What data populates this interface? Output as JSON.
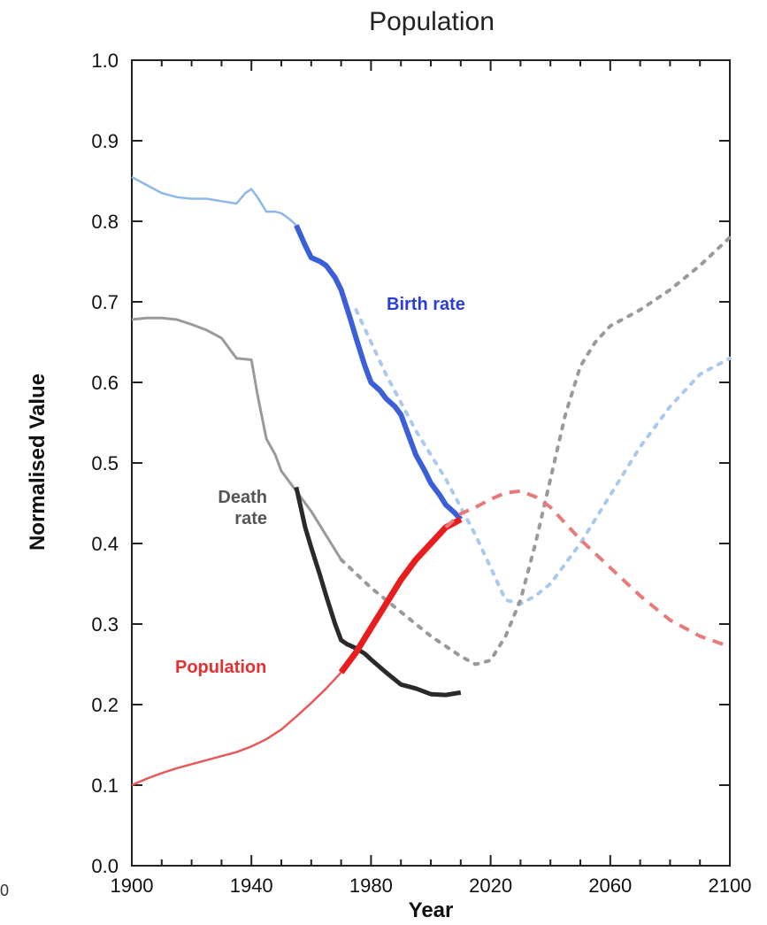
{
  "chart_data": {
    "type": "line",
    "title": "Population",
    "xlabel": "Year",
    "ylabel": "Normalised Value",
    "xlim": [
      1900,
      2100
    ],
    "ylim": [
      0.0,
      1.0
    ],
    "x_ticks": [
      "1900",
      "1940",
      "1980",
      "2020",
      "2060",
      "2100"
    ],
    "y_ticks": [
      "0.0",
      "0.1",
      "0.2",
      "0.3",
      "0.4",
      "0.5",
      "0.6",
      "0.7",
      "0.8",
      "0.9",
      "1.0"
    ],
    "stray_label": "0",
    "grid": false,
    "legend": "none",
    "annotations": [
      {
        "text": "Birth rate",
        "color": "#2b3fd6"
      },
      {
        "text": "Death",
        "color": "#555555"
      },
      {
        "text": "rate",
        "color": "#555555"
      },
      {
        "text": "Population",
        "color": "#e53030"
      }
    ],
    "series": [
      {
        "segments": [
          {
            "style": "solid",
            "color": "#8fb8e8",
            "width": 2.5,
            "points": [
              [
                1900,
                0.855
              ],
              [
                1905,
                0.845
              ],
              [
                1910,
                0.835
              ],
              [
                1915,
                0.83
              ],
              [
                1920,
                0.828
              ],
              [
                1925,
                0.828
              ],
              [
                1930,
                0.825
              ],
              [
                1935,
                0.822
              ],
              [
                1938,
                0.835
              ],
              [
                1940,
                0.84
              ],
              [
                1942,
                0.83
              ],
              [
                1945,
                0.812
              ],
              [
                1948,
                0.812
              ],
              [
                1950,
                0.81
              ],
              [
                1953,
                0.802
              ],
              [
                1955,
                0.795
              ]
            ]
          },
          {
            "style": "solid",
            "color": "#3a5fd9",
            "width": 6,
            "points": [
              [
                1955,
                0.795
              ],
              [
                1958,
                0.77
              ],
              [
                1960,
                0.755
              ],
              [
                1963,
                0.75
              ],
              [
                1965,
                0.745
              ],
              [
                1968,
                0.73
              ],
              [
                1970,
                0.715
              ],
              [
                1973,
                0.68
              ],
              [
                1975,
                0.655
              ],
              [
                1978,
                0.62
              ],
              [
                1980,
                0.6
              ],
              [
                1983,
                0.59
              ],
              [
                1985,
                0.58
              ],
              [
                1988,
                0.57
              ],
              [
                1990,
                0.56
              ],
              [
                1993,
                0.53
              ],
              [
                1995,
                0.51
              ],
              [
                1998,
                0.49
              ],
              [
                2000,
                0.475
              ],
              [
                2003,
                0.46
              ],
              [
                2005,
                0.448
              ],
              [
                2008,
                0.438
              ],
              [
                2010,
                0.43
              ]
            ]
          },
          {
            "style": "dotted",
            "color": "#a9c9ee",
            "width": 4,
            "points": [
              [
                1975,
                0.69
              ],
              [
                1985,
                0.61
              ],
              [
                1995,
                0.54
              ],
              [
                2005,
                0.48
              ],
              [
                2015,
                0.41
              ],
              [
                2020,
                0.37
              ],
              [
                2025,
                0.33
              ],
              [
                2030,
                0.325
              ],
              [
                2035,
                0.335
              ],
              [
                2040,
                0.35
              ],
              [
                2050,
                0.4
              ],
              [
                2060,
                0.46
              ],
              [
                2070,
                0.52
              ],
              [
                2080,
                0.57
              ],
              [
                2090,
                0.61
              ],
              [
                2100,
                0.63
              ]
            ]
          }
        ]
      },
      {
        "segments": [
          {
            "style": "solid",
            "color": "#9a9a9a",
            "width": 3,
            "points": [
              [
                1900,
                0.678
              ],
              [
                1905,
                0.68
              ],
              [
                1910,
                0.68
              ],
              [
                1915,
                0.678
              ],
              [
                1920,
                0.672
              ],
              [
                1925,
                0.665
              ],
              [
                1930,
                0.655
              ],
              [
                1933,
                0.64
              ],
              [
                1935,
                0.63
              ],
              [
                1940,
                0.628
              ],
              [
                1942,
                0.585
              ],
              [
                1945,
                0.53
              ],
              [
                1948,
                0.51
              ],
              [
                1950,
                0.49
              ],
              [
                1955,
                0.465
              ],
              [
                1960,
                0.44
              ],
              [
                1965,
                0.41
              ],
              [
                1970,
                0.38
              ]
            ]
          },
          {
            "style": "solid",
            "color": "#2a2a2a",
            "width": 5,
            "points": [
              [
                1955,
                0.47
              ],
              [
                1958,
                0.42
              ],
              [
                1960,
                0.395
              ],
              [
                1963,
                0.36
              ],
              [
                1965,
                0.335
              ],
              [
                1968,
                0.3
              ],
              [
                1970,
                0.28
              ],
              [
                1972,
                0.275
              ],
              [
                1975,
                0.27
              ],
              [
                1978,
                0.263
              ],
              [
                1980,
                0.256
              ],
              [
                1985,
                0.24
              ],
              [
                1990,
                0.225
              ],
              [
                1995,
                0.22
              ],
              [
                2000,
                0.213
              ],
              [
                2005,
                0.212
              ],
              [
                2010,
                0.215
              ]
            ]
          },
          {
            "style": "dotted",
            "color": "#9a9a9a",
            "width": 4,
            "points": [
              [
                1970,
                0.38
              ],
              [
                1980,
                0.345
              ],
              [
                1990,
                0.315
              ],
              [
                2000,
                0.285
              ],
              [
                2010,
                0.26
              ],
              [
                2015,
                0.25
              ],
              [
                2020,
                0.255
              ],
              [
                2025,
                0.285
              ],
              [
                2030,
                0.33
              ],
              [
                2035,
                0.4
              ],
              [
                2040,
                0.48
              ],
              [
                2045,
                0.56
              ],
              [
                2050,
                0.62
              ],
              [
                2055,
                0.65
              ],
              [
                2060,
                0.67
              ],
              [
                2070,
                0.69
              ],
              [
                2080,
                0.715
              ],
              [
                2090,
                0.745
              ],
              [
                2100,
                0.78
              ]
            ]
          }
        ]
      },
      {
        "segments": [
          {
            "style": "solid",
            "color": "#e65a5a",
            "width": 2.5,
            "points": [
              [
                1900,
                0.1
              ],
              [
                1905,
                0.108
              ],
              [
                1910,
                0.115
              ],
              [
                1915,
                0.121
              ],
              [
                1920,
                0.126
              ],
              [
                1925,
                0.131
              ],
              [
                1930,
                0.136
              ],
              [
                1935,
                0.141
              ],
              [
                1940,
                0.148
              ],
              [
                1945,
                0.157
              ],
              [
                1950,
                0.169
              ],
              [
                1955,
                0.185
              ],
              [
                1960,
                0.202
              ],
              [
                1965,
                0.22
              ],
              [
                1970,
                0.24
              ]
            ]
          },
          {
            "style": "solid",
            "color": "#e81e1e",
            "width": 7,
            "points": [
              [
                1970,
                0.24
              ],
              [
                1975,
                0.265
              ],
              [
                1980,
                0.295
              ],
              [
                1985,
                0.325
              ],
              [
                1990,
                0.355
              ],
              [
                1995,
                0.38
              ],
              [
                2000,
                0.4
              ],
              [
                2005,
                0.42
              ],
              [
                2010,
                0.43
              ]
            ]
          },
          {
            "style": "dashed",
            "color": "#e87a7a",
            "width": 4,
            "points": [
              [
                2005,
                0.42
              ],
              [
                2010,
                0.437
              ],
              [
                2015,
                0.445
              ],
              [
                2020,
                0.455
              ],
              [
                2025,
                0.463
              ],
              [
                2030,
                0.465
              ],
              [
                2035,
                0.458
              ],
              [
                2040,
                0.445
              ],
              [
                2045,
                0.425
              ],
              [
                2050,
                0.405
              ],
              [
                2060,
                0.37
              ],
              [
                2070,
                0.335
              ],
              [
                2080,
                0.305
              ],
              [
                2090,
                0.285
              ],
              [
                2100,
                0.272
              ]
            ]
          }
        ]
      }
    ]
  }
}
